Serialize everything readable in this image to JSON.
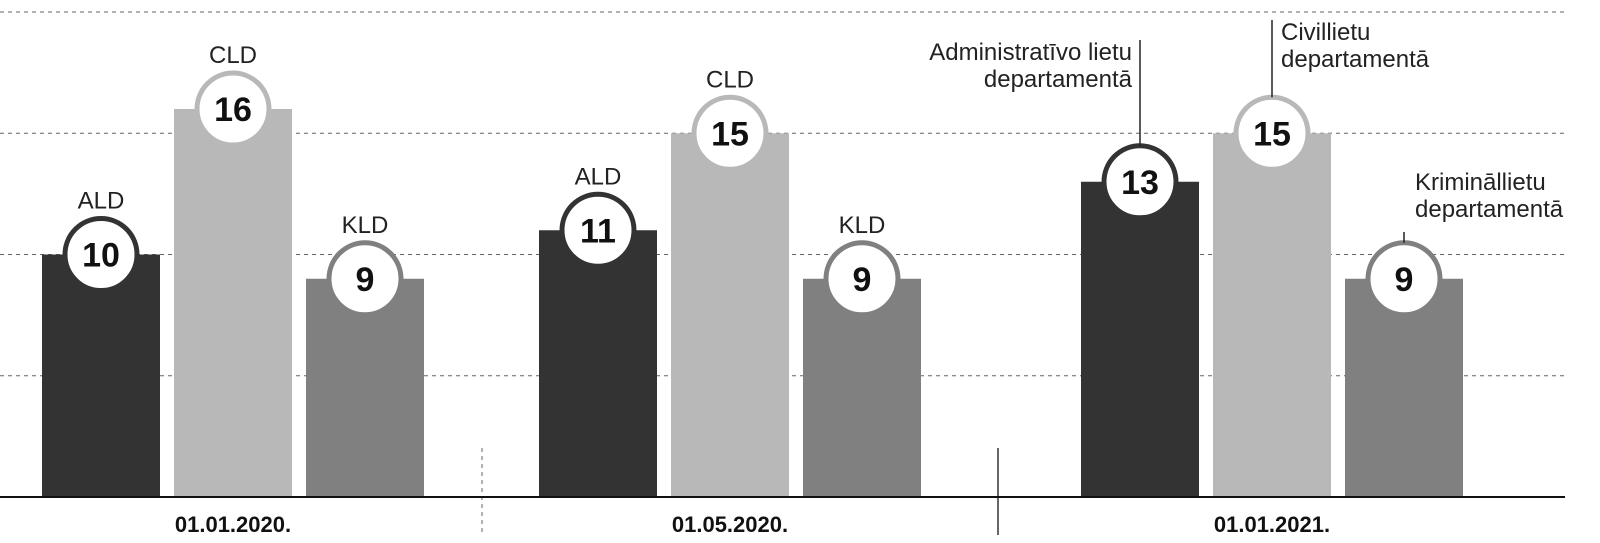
{
  "chart_data": {
    "type": "bar",
    "categories": [
      "01.01.2020.",
      "01.05.2020.",
      "01.01.2021."
    ],
    "series": [
      {
        "name": "ALD",
        "color": "#333333",
        "values": [
          10,
          11,
          13
        ]
      },
      {
        "name": "CLD",
        "color": "#b8b8b8",
        "values": [
          16,
          15,
          15
        ]
      },
      {
        "name": "KLD",
        "color": "#808080",
        "values": [
          9,
          9,
          9
        ]
      }
    ],
    "ylim": [
      0,
      20
    ],
    "grid": true,
    "annotations": {
      "ald": [
        "Administratīvo lietu",
        "departamentā"
      ],
      "cld": [
        "Civillietu",
        "departamentā"
      ],
      "kld": [
        "Krimināllietu",
        "departamentā"
      ]
    }
  }
}
